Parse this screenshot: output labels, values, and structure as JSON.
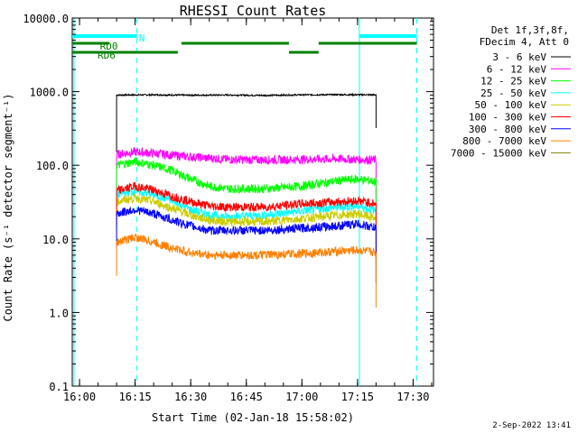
{
  "chart_data": {
    "type": "line",
    "title": "RHESSI Count Rates",
    "xlabel": "Start Time (02-Jan-18 15:58:02)",
    "ylabel": "Count Rate (s⁻¹ detector segment⁻¹)",
    "y_scale": "log",
    "ylim": [
      0.1,
      10000
    ],
    "xlim": [
      "15:58:02",
      "17:35:30"
    ],
    "x_ticks": [
      "16:00",
      "16:15",
      "16:30",
      "16:45",
      "17:00",
      "17:15",
      "17:30"
    ],
    "y_ticks": [
      "0.1",
      "1.0",
      "10.0",
      "100.0",
      "1000.0",
      "10000.0"
    ],
    "legend_header": [
      "Det 1f,3f,8f,",
      "FDecim 4, Att 0"
    ],
    "legend_position": "right",
    "series": [
      {
        "name": "3 - 6 keV",
        "color": "#000000",
        "x": [
          "16:10",
          "16:20",
          "16:30",
          "16:40",
          "16:50",
          "17:00",
          "17:10",
          "17:20"
        ],
        "values": [
          900,
          905,
          895,
          900,
          890,
          905,
          910,
          905
        ]
      },
      {
        "name": "6 - 12 keV",
        "color": "#ff00ff",
        "x": [
          "16:10",
          "16:15",
          "16:20",
          "16:30",
          "16:40",
          "16:50",
          "17:00",
          "17:10",
          "17:20"
        ],
        "values": [
          140,
          152,
          145,
          130,
          120,
          118,
          120,
          122,
          118
        ]
      },
      {
        "name": "12 - 25 keV",
        "color": "#00ff00",
        "x": [
          "16:10",
          "16:15",
          "16:20",
          "16:25",
          "16:30",
          "16:35",
          "16:40",
          "16:50",
          "17:00",
          "17:10",
          "17:15",
          "17:20"
        ],
        "values": [
          100,
          112,
          100,
          85,
          65,
          52,
          48,
          48,
          52,
          62,
          65,
          60
        ]
      },
      {
        "name": "25 - 50 keV",
        "color": "#00ffff",
        "x": [
          "16:10",
          "16:15",
          "16:20",
          "16:25",
          "16:30",
          "16:35",
          "16:40",
          "16:50",
          "17:00",
          "17:10",
          "17:15",
          "17:20"
        ],
        "values": [
          40,
          45,
          40,
          33,
          25,
          21,
          20,
          21,
          24,
          27,
          28,
          24
        ]
      },
      {
        "name": "50 - 100 keV",
        "color": "#cccc00",
        "x": [
          "16:10",
          "16:15",
          "16:20",
          "16:25",
          "16:30",
          "16:35",
          "16:40",
          "16:50",
          "17:00",
          "17:10",
          "17:15",
          "17:20"
        ],
        "values": [
          32,
          36,
          32,
          26,
          21,
          18,
          17,
          17,
          19,
          21,
          22,
          19
        ]
      },
      {
        "name": "100 - 300 keV",
        "color": "#ff0000",
        "x": [
          "16:10",
          "16:15",
          "16:20",
          "16:25",
          "16:30",
          "16:35",
          "16:40",
          "16:50",
          "17:00",
          "17:10",
          "17:15",
          "17:20"
        ],
        "values": [
          45,
          52,
          46,
          38,
          32,
          28,
          27,
          27,
          30,
          32,
          33,
          30
        ]
      },
      {
        "name": "300 - 800 keV",
        "color": "#0000ff",
        "x": [
          "16:10",
          "16:15",
          "16:20",
          "16:25",
          "16:30",
          "16:35",
          "16:40",
          "16:50",
          "17:00",
          "17:10",
          "17:15",
          "17:20"
        ],
        "values": [
          22,
          25,
          22,
          18,
          15,
          13,
          13,
          13,
          14,
          15,
          16,
          14
        ]
      },
      {
        "name": "800 - 7000 keV",
        "color": "#ff8000",
        "x": [
          "16:10",
          "16:15",
          "16:20",
          "16:25",
          "16:30",
          "16:35",
          "16:40",
          "16:50",
          "17:00",
          "17:10",
          "17:15",
          "17:20"
        ],
        "values": [
          9,
          10.5,
          9,
          7.5,
          6.5,
          6,
          6,
          6,
          6.3,
          6.8,
          7,
          6.5
        ]
      },
      {
        "name": "7000 - 15000 keV",
        "color": "#808000",
        "x": [],
        "values": []
      }
    ],
    "flags": [
      {
        "label": "N",
        "color": "#00ffff",
        "segments": [
          [
            "15:58:02",
            "16:15:30"
          ],
          [
            "17:15:30",
            "17:31:00"
          ]
        ]
      },
      {
        "label": "RD0",
        "color": "#008000",
        "segments": [
          [
            "15:58:02",
            "16:08:00"
          ],
          [
            "16:27:30",
            "16:56:30"
          ],
          [
            "17:04:30",
            "17:31:00"
          ]
        ]
      },
      {
        "label": "RD6",
        "color": "#008000",
        "segments": [
          [
            "15:58:02",
            "16:08:00"
          ],
          [
            "16:08:00",
            "16:26:30"
          ],
          [
            "16:56:30",
            "17:04:30"
          ]
        ]
      }
    ],
    "vertical_markers": [
      {
        "time": "15:58:30",
        "color": "#00ffff",
        "style": "solid"
      },
      {
        "time": "16:15:30",
        "color": "#00ffff",
        "style": "dashed"
      },
      {
        "time": "17:15:30",
        "color": "#00ffff",
        "style": "solid"
      },
      {
        "time": "17:31:00",
        "color": "#00ffff",
        "style": "dashed"
      }
    ],
    "grid": false
  },
  "footer": {
    "date": "2-Sep-2022 13:41"
  }
}
